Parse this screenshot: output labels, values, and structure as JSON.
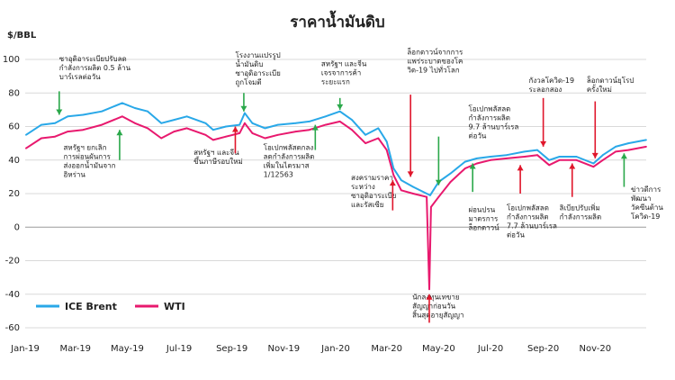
{
  "chart_data": {
    "type": "line",
    "title": "ราคาน้ำมันดิบ",
    "ylabel": "$/BBL",
    "ylim": [
      -60,
      100
    ],
    "yticks": [
      -60,
      -40,
      -20,
      0,
      20,
      40,
      60,
      80,
      100
    ],
    "xlim": [
      "2019-01-01",
      "2020-12-31"
    ],
    "xticks": [
      {
        "date": "2019-01-01",
        "label": "Jan-19"
      },
      {
        "date": "2019-03-01",
        "label": "Mar-19"
      },
      {
        "date": "2019-05-01",
        "label": "May-19"
      },
      {
        "date": "2019-07-01",
        "label": "Jul-19"
      },
      {
        "date": "2019-09-01",
        "label": "Sep-19"
      },
      {
        "date": "2019-11-01",
        "label": "Nov-19"
      },
      {
        "date": "2020-01-01",
        "label": "Jan-20"
      },
      {
        "date": "2020-03-01",
        "label": "Mar-20"
      },
      {
        "date": "2020-05-01",
        "label": "May-20"
      },
      {
        "date": "2020-07-01",
        "label": "Jul-20"
      },
      {
        "date": "2020-09-01",
        "label": "Sep-20"
      },
      {
        "date": "2020-11-01",
        "label": "Nov-20"
      }
    ],
    "legend": "bottom-left",
    "series": [
      {
        "name": "ICE Brent",
        "color": "#29a8e8",
        "points": [
          [
            "2019-01-02",
            55
          ],
          [
            "2019-01-20",
            61
          ],
          [
            "2019-02-05",
            62
          ],
          [
            "2019-02-20",
            66
          ],
          [
            "2019-03-10",
            67
          ],
          [
            "2019-04-01",
            69
          ],
          [
            "2019-04-25",
            74
          ],
          [
            "2019-05-10",
            71
          ],
          [
            "2019-05-25",
            69
          ],
          [
            "2019-06-10",
            62
          ],
          [
            "2019-06-25",
            64
          ],
          [
            "2019-07-10",
            66
          ],
          [
            "2019-08-01",
            62
          ],
          [
            "2019-08-10",
            58
          ],
          [
            "2019-08-25",
            60
          ],
          [
            "2019-09-10",
            61
          ],
          [
            "2019-09-16",
            68
          ],
          [
            "2019-09-25",
            62
          ],
          [
            "2019-10-10",
            59
          ],
          [
            "2019-10-25",
            61
          ],
          [
            "2019-11-15",
            62
          ],
          [
            "2019-12-01",
            63
          ],
          [
            "2019-12-20",
            66
          ],
          [
            "2020-01-06",
            69
          ],
          [
            "2020-01-20",
            64
          ],
          [
            "2020-02-05",
            55
          ],
          [
            "2020-02-20",
            59
          ],
          [
            "2020-03-01",
            51
          ],
          [
            "2020-03-09",
            35
          ],
          [
            "2020-03-18",
            28
          ],
          [
            "2020-04-01",
            24
          ],
          [
            "2020-04-21",
            19
          ],
          [
            "2020-05-01",
            27
          ],
          [
            "2020-05-15",
            32
          ],
          [
            "2020-06-01",
            39
          ],
          [
            "2020-06-15",
            41
          ],
          [
            "2020-07-01",
            42
          ],
          [
            "2020-07-20",
            43
          ],
          [
            "2020-08-10",
            45
          ],
          [
            "2020-08-25",
            46
          ],
          [
            "2020-09-08",
            40
          ],
          [
            "2020-09-20",
            42
          ],
          [
            "2020-10-10",
            42
          ],
          [
            "2020-10-30",
            38
          ],
          [
            "2020-11-10",
            43
          ],
          [
            "2020-11-25",
            48
          ],
          [
            "2020-12-10",
            50
          ],
          [
            "2020-12-31",
            52
          ]
        ]
      },
      {
        "name": "WTI",
        "color": "#e8196e",
        "points": [
          [
            "2019-01-02",
            47
          ],
          [
            "2019-01-20",
            53
          ],
          [
            "2019-02-05",
            54
          ],
          [
            "2019-02-20",
            57
          ],
          [
            "2019-03-10",
            58
          ],
          [
            "2019-04-01",
            61
          ],
          [
            "2019-04-25",
            66
          ],
          [
            "2019-05-10",
            62
          ],
          [
            "2019-05-25",
            59
          ],
          [
            "2019-06-10",
            53
          ],
          [
            "2019-06-25",
            57
          ],
          [
            "2019-07-10",
            59
          ],
          [
            "2019-08-01",
            55
          ],
          [
            "2019-08-10",
            52
          ],
          [
            "2019-08-25",
            54
          ],
          [
            "2019-09-10",
            56
          ],
          [
            "2019-09-16",
            62
          ],
          [
            "2019-09-25",
            56
          ],
          [
            "2019-10-10",
            53
          ],
          [
            "2019-10-25",
            55
          ],
          [
            "2019-11-15",
            57
          ],
          [
            "2019-12-01",
            58
          ],
          [
            "2019-12-20",
            61
          ],
          [
            "2020-01-06",
            63
          ],
          [
            "2020-01-20",
            58
          ],
          [
            "2020-02-05",
            50
          ],
          [
            "2020-02-20",
            53
          ],
          [
            "2020-03-01",
            46
          ],
          [
            "2020-03-09",
            31
          ],
          [
            "2020-03-18",
            22
          ],
          [
            "2020-04-01",
            20
          ],
          [
            "2020-04-17",
            18
          ],
          [
            "2020-04-20",
            -37
          ],
          [
            "2020-04-22",
            12
          ],
          [
            "2020-05-01",
            18
          ],
          [
            "2020-05-15",
            27
          ],
          [
            "2020-06-01",
            35
          ],
          [
            "2020-06-15",
            38
          ],
          [
            "2020-07-01",
            40
          ],
          [
            "2020-07-20",
            41
          ],
          [
            "2020-08-10",
            42
          ],
          [
            "2020-08-25",
            43
          ],
          [
            "2020-09-08",
            37
          ],
          [
            "2020-09-20",
            40
          ],
          [
            "2020-10-10",
            40
          ],
          [
            "2020-10-30",
            36
          ],
          [
            "2020-11-10",
            40
          ],
          [
            "2020-11-25",
            45
          ],
          [
            "2020-12-10",
            46
          ],
          [
            "2020-12-31",
            48
          ]
        ]
      }
    ],
    "annotations": [
      {
        "lines": [
          "ซาอุดิอาระเบียปรับลด",
          "กำลังการผลิต 0.5 ล้าน",
          "บาร์เรลต่อวัน"
        ],
        "text_date": "2019-02-10",
        "text_y": 99,
        "arrow_date": "2019-02-10",
        "arrow_from": 81,
        "arrow_to": 67,
        "arrow_color": "green"
      },
      {
        "lines": [
          "สหรัฐฯ ยกเลิก",
          "การผ่อนผันการ",
          "ส่งออกน้ำมันจาก",
          "อิหร่าน"
        ],
        "text_date": "2019-02-15",
        "text_y": 46,
        "arrow_date": "2019-04-22",
        "arrow_from": 40,
        "arrow_to": 58,
        "arrow_color": "green"
      },
      {
        "lines": [
          "โรงงานแปรรูป",
          "น้ำมันดิบ",
          "ซาอุดิอาระเบีย",
          "ถูกโจมตี"
        ],
        "text_date": "2019-09-05",
        "text_y": 101,
        "arrow_date": "2019-09-15",
        "arrow_from": 80,
        "arrow_to": 69,
        "arrow_color": "green"
      },
      {
        "lines": [
          "สหรัฐฯ และจีน",
          "ขึ้นภาษีรอบใหม่"
        ],
        "text_date": "2019-07-18",
        "text_y": 43,
        "arrow_date": "2019-09-05",
        "arrow_from": 44,
        "arrow_to": 60,
        "arrow_color": "red"
      },
      {
        "lines": [
          "โอเปกพลัสตกลง",
          "ลดกำลังการผลิต",
          "เพิ่มในไตรมาส",
          "1/12563"
        ],
        "text_date": "2019-10-08",
        "text_y": 46,
        "arrow_date": "2019-12-08",
        "arrow_from": 46,
        "arrow_to": 61,
        "arrow_color": "green"
      },
      {
        "lines": [
          "สหรัฐฯ และจีน",
          "เจรจาการค้า",
          "ระยะแรก"
        ],
        "text_date": "2019-12-15",
        "text_y": 96,
        "arrow_date": "2020-01-06",
        "arrow_from": 77,
        "arrow_to": 70,
        "arrow_color": "green"
      },
      {
        "lines": [
          "ล็อกดาวน์จากการ",
          "แพร่ระบาดของโค",
          "วิด-19 ไปทั่วโลก"
        ],
        "text_date": "2020-03-25",
        "text_y": 103,
        "arrow_date": "2020-03-29",
        "arrow_from": 79,
        "arrow_to": 30,
        "arrow_color": "red"
      },
      {
        "lines": [
          "สงครามราคา",
          "ระหว่าง",
          "ซาอุดิอาระเบีย",
          "และรัสเซีย"
        ],
        "text_date": "2020-01-19",
        "text_y": 28,
        "arrow_date": "2020-03-08",
        "arrow_from": 10,
        "arrow_to": 28,
        "arrow_color": "red"
      },
      {
        "lines": [
          "โอเปกพลัสลด",
          "กำลังการผลิต",
          "9.7 ล้านบาร์เรล",
          "ต่อวัน"
        ],
        "text_date": "2020-06-05",
        "text_y": 69,
        "arrow_date": "2020-05-01",
        "arrow_from": 54,
        "arrow_to": 25,
        "arrow_color": "green"
      },
      {
        "lines": [
          "ผ่อนปรน",
          "มาตรการ",
          "ล็อกดาวน์"
        ],
        "text_date": "2020-06-05",
        "text_y": 9,
        "arrow_date": "2020-06-10",
        "arrow_from": 21,
        "arrow_to": 38,
        "arrow_color": "green"
      },
      {
        "lines": [
          "นักลงทุนเทขาย",
          "สัญญาก่อนวัน",
          "สิ้นสุดอายุสัญญา"
        ],
        "text_date": "2020-03-31",
        "text_y": -43,
        "arrow_date": "2020-04-20",
        "arrow_from": -57,
        "arrow_to": -40,
        "arrow_color": "red"
      },
      {
        "lines": [
          "กังวลโควิด-19",
          "ระลอกสอง"
        ],
        "text_date": "2020-08-15",
        "text_y": 86,
        "arrow_date": "2020-09-01",
        "arrow_from": 77,
        "arrow_to": 48,
        "arrow_color": "red"
      },
      {
        "lines": [
          "ล็อกดาวน์ยุโรป",
          "ครั้งใหม่"
        ],
        "text_date": "2020-10-22",
        "text_y": 86,
        "arrow_date": "2020-11-01",
        "arrow_from": 75,
        "arrow_to": 41,
        "arrow_color": "red"
      },
      {
        "lines": [
          "โอเปกพลัสลด",
          "กำลังการผลิต",
          "7.7 ล้านบาร์เรล",
          "ต่อวัน"
        ],
        "text_date": "2020-07-20",
        "text_y": 10,
        "arrow_date": "2020-08-05",
        "arrow_from": 20,
        "arrow_to": 37,
        "arrow_color": "red"
      },
      {
        "lines": [
          "ลิเบียปรับเพิ่ม",
          "กำลังการผลิต"
        ],
        "text_date": "2020-09-20",
        "text_y": 10,
        "arrow_date": "2020-10-05",
        "arrow_from": 18,
        "arrow_to": 38,
        "arrow_color": "red"
      },
      {
        "lines": [
          "ข่าวดีการ",
          "พัฒนา",
          "วัคซีนต้าน",
          "โควิด-19"
        ],
        "text_date": "2020-12-13",
        "text_y": 21,
        "arrow_date": "2020-12-05",
        "arrow_from": 24,
        "arrow_to": 44,
        "arrow_color": "green"
      }
    ]
  }
}
